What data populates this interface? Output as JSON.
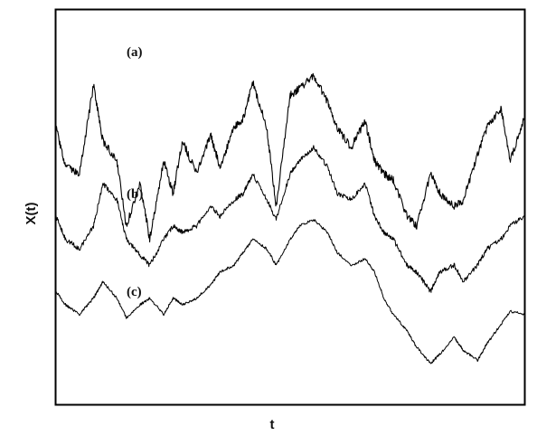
{
  "chart_data": {
    "type": "line",
    "title": "",
    "xlabel": "t",
    "ylabel": "X(t)",
    "grid": false,
    "legend": "none",
    "ticks": "none",
    "xlim": [
      0,
      1
    ],
    "series": [
      {
        "name": "(a)",
        "x": [
          0,
          0.02,
          0.05,
          0.08,
          0.1,
          0.13,
          0.15,
          0.18,
          0.2,
          0.23,
          0.25,
          0.27,
          0.3,
          0.33,
          0.35,
          0.38,
          0.4,
          0.42,
          0.45,
          0.47,
          0.5,
          0.52,
          0.55,
          0.58,
          0.6,
          0.63,
          0.66,
          0.68,
          0.7,
          0.72,
          0.75,
          0.77,
          0.8,
          0.82,
          0.85,
          0.87,
          0.9,
          0.92,
          0.95,
          0.97,
          1
        ],
        "y": [
          0.72,
          0.6,
          0.58,
          0.85,
          0.68,
          0.62,
          0.42,
          0.55,
          0.38,
          0.62,
          0.52,
          0.68,
          0.58,
          0.7,
          0.6,
          0.72,
          0.75,
          0.86,
          0.72,
          0.48,
          0.82,
          0.84,
          0.88,
          0.8,
          0.72,
          0.66,
          0.74,
          0.62,
          0.58,
          0.56,
          0.45,
          0.42,
          0.58,
          0.52,
          0.48,
          0.5,
          0.64,
          0.72,
          0.78,
          0.62,
          0.75
        ]
      },
      {
        "name": "(b)",
        "x": [
          0,
          0.02,
          0.05,
          0.08,
          0.1,
          0.13,
          0.15,
          0.18,
          0.2,
          0.23,
          0.25,
          0.27,
          0.3,
          0.33,
          0.35,
          0.38,
          0.4,
          0.42,
          0.45,
          0.47,
          0.5,
          0.52,
          0.55,
          0.58,
          0.6,
          0.63,
          0.66,
          0.68,
          0.7,
          0.72,
          0.75,
          0.77,
          0.8,
          0.82,
          0.85,
          0.87,
          0.9,
          0.92,
          0.95,
          0.97,
          1
        ],
        "y": [
          0.45,
          0.38,
          0.35,
          0.42,
          0.55,
          0.5,
          0.38,
          0.33,
          0.3,
          0.38,
          0.42,
          0.4,
          0.42,
          0.48,
          0.45,
          0.5,
          0.52,
          0.58,
          0.5,
          0.44,
          0.58,
          0.62,
          0.66,
          0.6,
          0.52,
          0.5,
          0.55,
          0.45,
          0.4,
          0.38,
          0.3,
          0.28,
          0.22,
          0.28,
          0.3,
          0.25,
          0.3,
          0.35,
          0.38,
          0.42,
          0.45
        ]
      },
      {
        "name": "(c)",
        "x": [
          0,
          0.02,
          0.05,
          0.08,
          0.1,
          0.13,
          0.15,
          0.18,
          0.2,
          0.23,
          0.25,
          0.27,
          0.3,
          0.33,
          0.35,
          0.38,
          0.4,
          0.42,
          0.45,
          0.47,
          0.5,
          0.52,
          0.55,
          0.58,
          0.6,
          0.63,
          0.66,
          0.68,
          0.7,
          0.72,
          0.75,
          0.77,
          0.8,
          0.82,
          0.85,
          0.87,
          0.9,
          0.92,
          0.95,
          0.97,
          1
        ],
        "y": [
          0.22,
          0.18,
          0.15,
          0.2,
          0.25,
          0.2,
          0.14,
          0.18,
          0.2,
          0.15,
          0.2,
          0.18,
          0.2,
          0.24,
          0.28,
          0.3,
          0.34,
          0.38,
          0.35,
          0.3,
          0.38,
          0.42,
          0.44,
          0.4,
          0.34,
          0.3,
          0.32,
          0.28,
          0.2,
          0.15,
          0.1,
          0.05,
          0.0,
          0.03,
          0.08,
          0.04,
          0.01,
          0.06,
          0.12,
          0.16,
          0.15
        ]
      }
    ]
  }
}
